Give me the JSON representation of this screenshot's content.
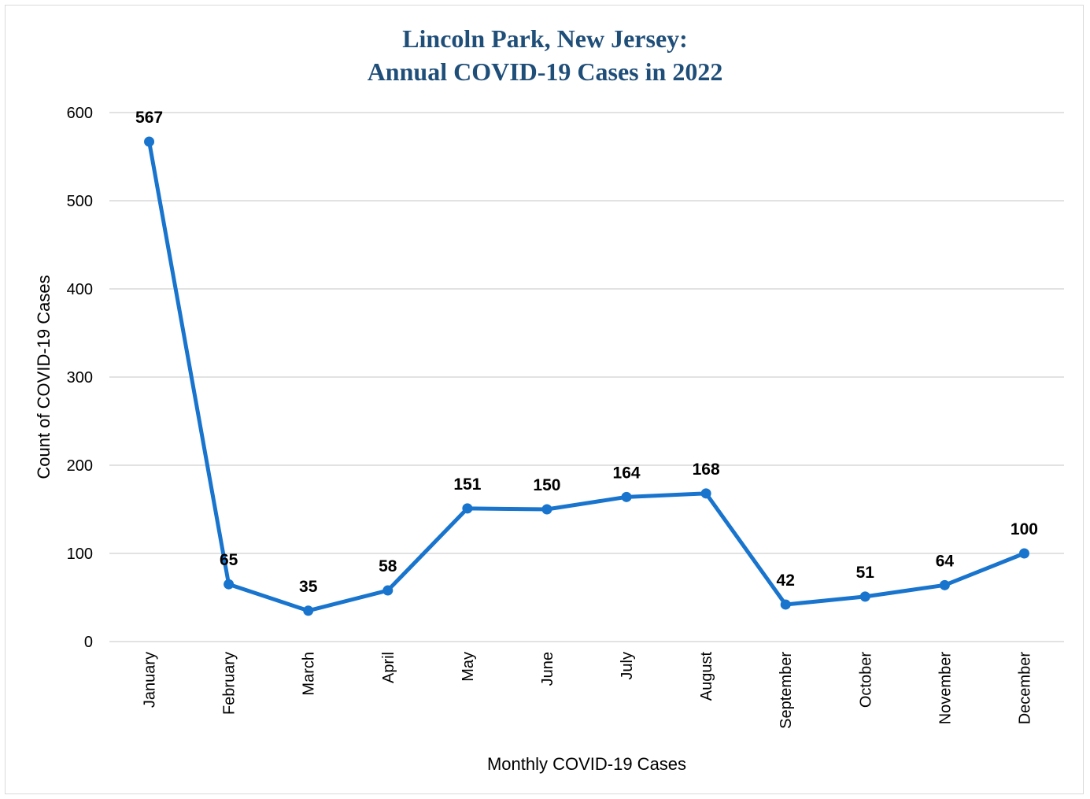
{
  "chart_data": {
    "type": "line",
    "title": [
      "Lincoln Park, New Jersey:",
      "Annual COVID-19 Cases in 2022"
    ],
    "xlabel": "Monthly COVID-19 Cases",
    "ylabel": "Count of COVID-19 Cases",
    "categories": [
      "January",
      "February",
      "March",
      "April",
      "May",
      "June",
      "July",
      "August",
      "September",
      "October",
      "November",
      "December"
    ],
    "series": [
      {
        "values": [
          567,
          65,
          35,
          58,
          151,
          150,
          164,
          168,
          42,
          51,
          64,
          100
        ]
      }
    ],
    "ylim": [
      0,
      600
    ],
    "yticks": [
      0,
      100,
      200,
      300,
      400,
      500,
      600
    ],
    "grid": true,
    "legend": "none",
    "data_labels": true,
    "colors": {
      "line": "#1874cd",
      "grid": "#d9d9d9",
      "title": "#1f4e79"
    }
  }
}
